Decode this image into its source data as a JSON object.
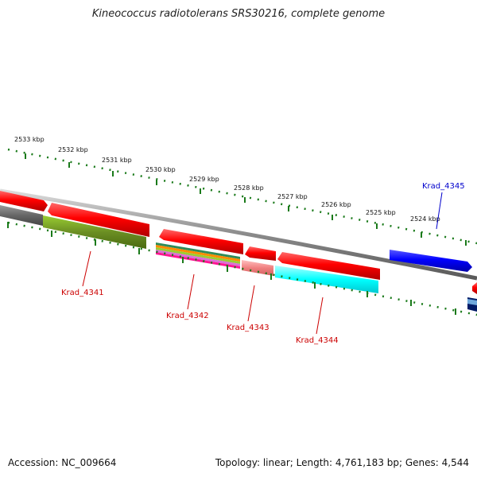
{
  "title": "Kineococcus radiotolerans SRS30216, complete genome",
  "footer": {
    "accession": "Accession: NC_009664",
    "summary": "Topology: linear; Length: 4,761,183 bp; Genes: 4,544"
  },
  "scale_labels": [
    "2533 kbp",
    "2532 kbp",
    "2531 kbp",
    "2530 kbp",
    "2529 kbp",
    "2528 kbp",
    "2527 kbp",
    "2526 kbp",
    "2525 kbp",
    "2524 kbp"
  ],
  "gene_labels": [
    {
      "text": "Krad_4341",
      "color": "#cc0000"
    },
    {
      "text": "Krad_4342",
      "color": "#cc0000"
    },
    {
      "text": "Krad_4343",
      "color": "#cc0000"
    },
    {
      "text": "Krad_4344",
      "color": "#cc0000"
    },
    {
      "text": "Krad_4345",
      "color": "#0000cc"
    }
  ],
  "colors": {
    "tick": "#1a7a1a",
    "gene_red": "#ee0000",
    "gene_blue": "#0000ee",
    "backbone": "#888888",
    "feature_grey": "#666666",
    "feature_olive": "#6b8e23",
    "feature_pink": "#f08080",
    "feature_cyan": "#00e5ee"
  }
}
